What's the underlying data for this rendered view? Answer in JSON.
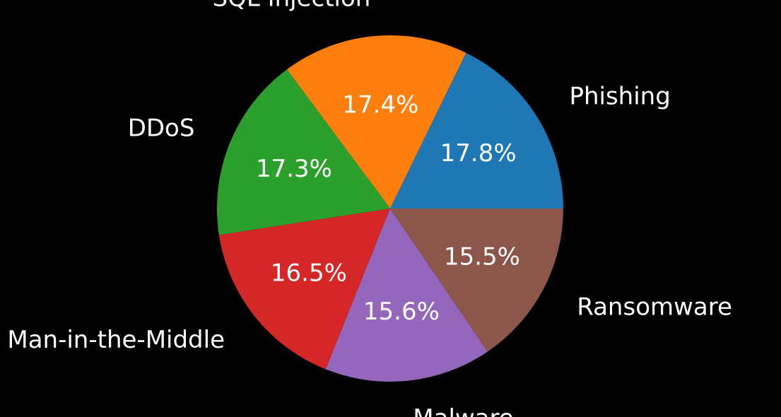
{
  "chart_data": {
    "type": "pie",
    "start_angle_deg": 0,
    "direction": "counterclockwise",
    "slices": [
      {
        "label": "Phishing",
        "percent": "17.8%",
        "value": 17.8,
        "color": "#1f77b4"
      },
      {
        "label": "SQL Injection",
        "percent": "17.4%",
        "value": 17.4,
        "color": "#ff7f0e"
      },
      {
        "label": "DDoS",
        "percent": "17.3%",
        "value": 17.3,
        "color": "#2ca02c"
      },
      {
        "label": "Man-in-the-Middle",
        "percent": "16.5%",
        "value": 16.5,
        "color": "#d62728"
      },
      {
        "label": "Malware",
        "percent": "15.6%",
        "value": 15.6,
        "color": "#9467bd"
      },
      {
        "label": "Ransomware",
        "percent": "15.5%",
        "value": 15.5,
        "color": "#8c564b"
      }
    ]
  },
  "colors": {
    "background": "#000000",
    "text": "#ffffff"
  }
}
